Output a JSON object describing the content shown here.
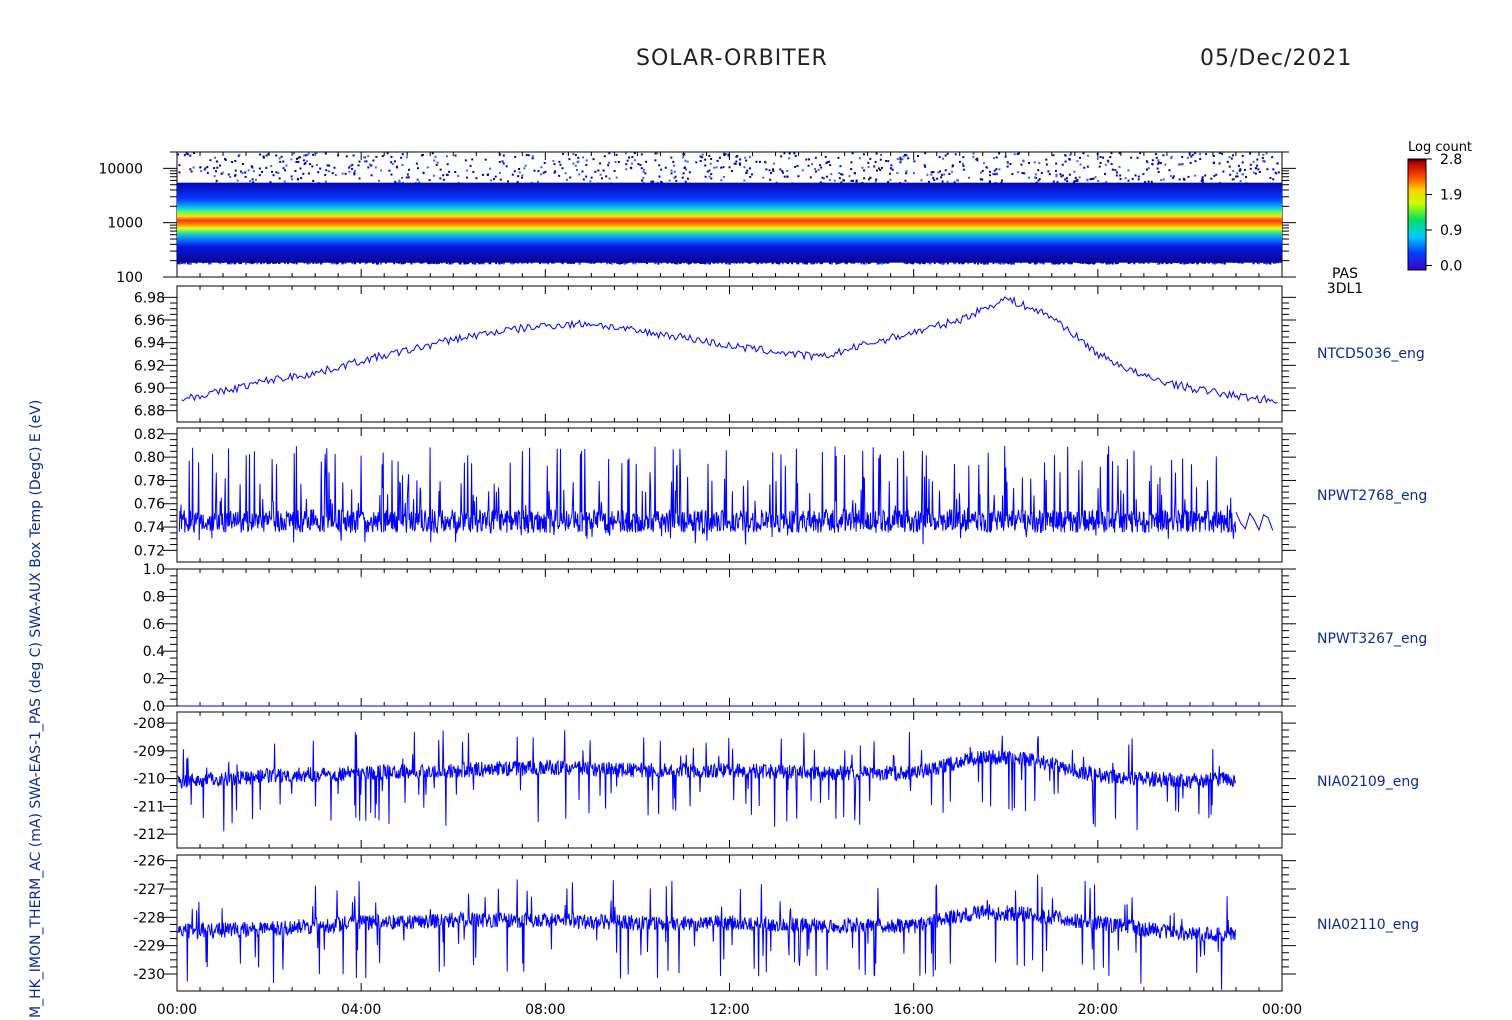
{
  "header": {
    "mission": "SOLAR-ORBITER",
    "date": "05/Dec/2021"
  },
  "colorbar": {
    "title": "Log count",
    "ticks": [
      "2.8",
      "1.9",
      "0.9",
      "0.0"
    ]
  },
  "left_axis_label": "M_HK_IMON_THERM_AC (mA) SWA-EAS-1_PAS (deg C) SWA-AUX Box Temp (DegC) E (eV)",
  "colors": {
    "trace": "#0000ff",
    "axis": "#000000",
    "label": "#0a2a9a"
  },
  "chart_data": [
    {
      "type": "heatmap",
      "panel_label_lines": [
        "PAS",
        "3DL1"
      ],
      "ylabel": "E (eV)",
      "yscale": "log",
      "ylim": [
        100,
        20000
      ],
      "ytick_labels": [
        "10000",
        "1000",
        "100"
      ],
      "ytick_values": [
        10000,
        1000,
        100
      ],
      "band_center_eV": 1000,
      "colormap": "rainbow",
      "color_range": [
        0.0,
        2.8
      ]
    },
    {
      "type": "line",
      "label": "NTCD5036_eng",
      "ylim": [
        6.87,
        6.99
      ],
      "ytick_labels": [
        "6.98",
        "6.96",
        "6.94",
        "6.92",
        "6.90",
        "6.88"
      ],
      "ytick_values": [
        6.98,
        6.96,
        6.94,
        6.92,
        6.9,
        6.88
      ],
      "x_hours": [
        0,
        1,
        2,
        3,
        4,
        5,
        6,
        7,
        8,
        9,
        10,
        11,
        12,
        13,
        14,
        15,
        16,
        17,
        18,
        19,
        20,
        21,
        22,
        23,
        24
      ],
      "y": [
        6.89,
        6.897,
        6.907,
        6.913,
        6.924,
        6.933,
        6.943,
        6.95,
        6.955,
        6.957,
        6.95,
        6.945,
        6.937,
        6.932,
        6.927,
        6.939,
        6.949,
        6.96,
        6.979,
        6.963,
        6.93,
        6.91,
        6.9,
        6.893,
        6.888
      ]
    },
    {
      "type": "line",
      "label": "NPWT2768_eng",
      "ylim": [
        0.71,
        0.825
      ],
      "ytick_labels": [
        "0.82",
        "0.80",
        "0.78",
        "0.76",
        "0.74",
        "0.72"
      ],
      "ytick_values": [
        0.82,
        0.8,
        0.78,
        0.76,
        0.74,
        0.72
      ],
      "baseline": 0.745,
      "upper_envelope": 0.8,
      "lower_envelope": 0.725,
      "data_end_hour": 23.0
    },
    {
      "type": "line",
      "label": "NPWT3267_eng",
      "ylim": [
        0.0,
        1.0
      ],
      "ytick_labels": [
        "1.0",
        "0.8",
        "0.6",
        "0.4",
        "0.2",
        "0.0"
      ],
      "ytick_values": [
        1.0,
        0.8,
        0.6,
        0.4,
        0.2,
        0.0
      ],
      "value": 0.0
    },
    {
      "type": "line",
      "label": "NIA02109_eng",
      "ylim": [
        -212.5,
        -207.6
      ],
      "ytick_labels": [
        "-208",
        "-209",
        "-210",
        "-211",
        "-212"
      ],
      "ytick_values": [
        -208,
        -209,
        -210,
        -211,
        -212
      ],
      "x_hours": [
        0,
        2,
        4,
        6,
        8,
        10,
        12,
        14,
        16,
        17.5,
        18.5,
        20,
        22,
        23
      ],
      "y": [
        -210.1,
        -209.9,
        -209.8,
        -209.7,
        -209.6,
        -209.7,
        -209.7,
        -209.8,
        -209.8,
        -209.2,
        -209.3,
        -209.9,
        -210.1,
        -210.0
      ],
      "data_end_hour": 23.0
    },
    {
      "type": "line",
      "label": "NIA02110_eng",
      "ylim": [
        -230.6,
        -225.8
      ],
      "ytick_labels": [
        "-226",
        "-227",
        "-228",
        "-229",
        "-230"
      ],
      "ytick_values": [
        -226,
        -227,
        -228,
        -229,
        -230
      ],
      "x_hours": [
        0,
        2,
        4,
        6,
        8,
        10,
        12,
        14,
        16,
        17.5,
        18.5,
        20,
        22,
        23
      ],
      "y": [
        -228.5,
        -228.4,
        -228.2,
        -228.1,
        -228.1,
        -228.2,
        -228.2,
        -228.3,
        -228.3,
        -227.8,
        -227.9,
        -228.2,
        -228.6,
        -228.6
      ],
      "data_end_hour": 23.0
    }
  ],
  "x_axis": {
    "tick_labels": [
      "00:00",
      "04:00",
      "08:00",
      "12:00",
      "16:00",
      "20:00",
      "00:00"
    ],
    "tick_hours": [
      0,
      4,
      8,
      12,
      16,
      20,
      24
    ],
    "minor_step_hours": 0.5
  }
}
